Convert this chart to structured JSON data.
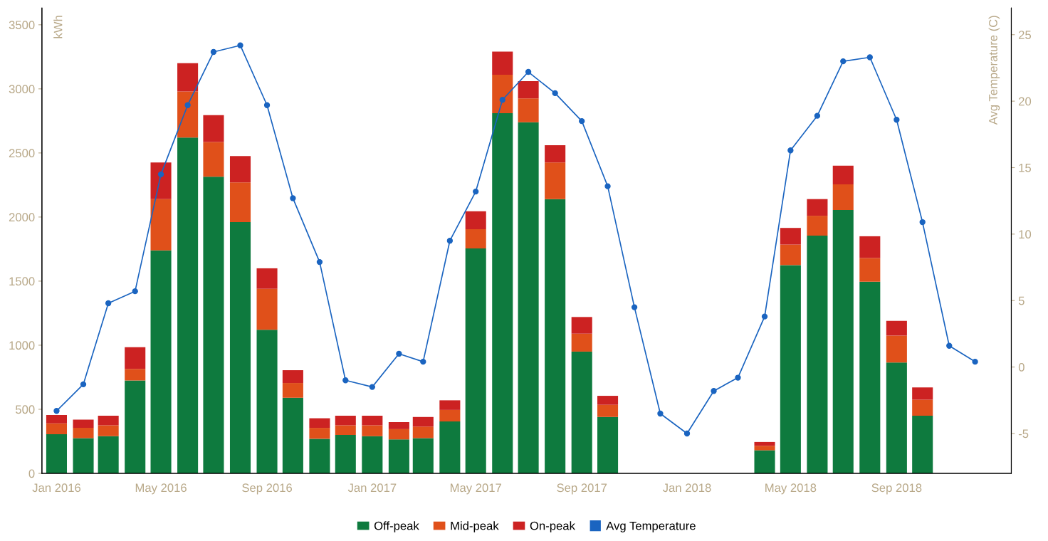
{
  "chart_data": {
    "type": "bar",
    "stacked": true,
    "x": [
      "2016-01",
      "2016-02",
      "2016-03",
      "2016-04",
      "2016-05",
      "2016-06",
      "2016-07",
      "2016-08",
      "2016-09",
      "2016-10",
      "2016-11",
      "2016-12",
      "2017-01",
      "2017-02",
      "2017-03",
      "2017-04",
      "2017-05",
      "2017-06",
      "2017-07",
      "2017-08",
      "2017-09",
      "2017-10",
      "2017-11",
      "2017-12",
      "2018-01",
      "2018-02",
      "2018-03",
      "2018-04",
      "2018-05",
      "2018-06",
      "2018-07",
      "2018-08",
      "2018-09",
      "2018-10",
      "2018-11",
      "2018-12"
    ],
    "series": [
      {
        "name": "Off-peak",
        "color": "#0e7a3e",
        "values": [
          305,
          275,
          290,
          725,
          1740,
          2620,
          2315,
          1960,
          1120,
          590,
          270,
          300,
          290,
          265,
          275,
          405,
          1755,
          2810,
          2740,
          2140,
          950,
          440,
          null,
          null,
          null,
          null,
          null,
          180,
          1625,
          1855,
          2055,
          1495,
          865,
          450,
          null,
          null
        ]
      },
      {
        "name": "Mid-peak",
        "color": "#e0501a",
        "values": [
          85,
          80,
          85,
          90,
          400,
          360,
          270,
          310,
          320,
          115,
          85,
          75,
          85,
          80,
          90,
          90,
          150,
          300,
          185,
          285,
          140,
          95,
          null,
          null,
          null,
          null,
          null,
          35,
          160,
          155,
          200,
          185,
          210,
          125,
          null,
          null
        ]
      },
      {
        "name": "On-peak",
        "color": "#cc2222",
        "values": [
          65,
          65,
          75,
          170,
          285,
          220,
          210,
          205,
          160,
          100,
          75,
          75,
          75,
          55,
          75,
          75,
          140,
          180,
          135,
          135,
          130,
          70,
          null,
          null,
          null,
          null,
          null,
          30,
          130,
          130,
          145,
          170,
          115,
          95,
          null,
          null
        ]
      },
      {
        "name": "Avg Temperature",
        "type": "line",
        "axis": "y2",
        "color": "#1a64c0",
        "marker": "circle",
        "values": [
          -3.3,
          -1.3,
          4.8,
          5.7,
          14.5,
          19.7,
          23.7,
          24.2,
          19.7,
          12.7,
          7.9,
          -1.0,
          -1.5,
          1.0,
          0.4,
          9.5,
          13.2,
          20.1,
          22.2,
          20.6,
          18.5,
          13.6,
          4.5,
          -3.5,
          -5.0,
          -1.8,
          -0.8,
          3.8,
          16.3,
          18.9,
          23.0,
          23.3,
          18.6,
          10.9,
          1.6,
          0.4
        ]
      }
    ],
    "ylabel": "kWh",
    "y2label": "Avg Temperature (C)",
    "xlim": [
      "2015-12-15",
      "2019-01-12"
    ],
    "xticks": [
      {
        "value": "2016-01",
        "label": "Jan 2016"
      },
      {
        "value": "2016-05",
        "label": "May 2016"
      },
      {
        "value": "2016-09",
        "label": "Sep 2016"
      },
      {
        "value": "2017-01",
        "label": "Jan 2017"
      },
      {
        "value": "2017-05",
        "label": "May 2017"
      },
      {
        "value": "2017-09",
        "label": "Sep 2017"
      },
      {
        "value": "2018-01",
        "label": "Jan 2018"
      },
      {
        "value": "2018-05",
        "label": "May 2018"
      },
      {
        "value": "2018-09",
        "label": "Sep 2018"
      }
    ],
    "ylim": [
      0,
      3630
    ],
    "yticks": [
      0,
      500,
      1000,
      1500,
      2000,
      2500,
      3000,
      3500
    ],
    "y2lim": [
      -8,
      27
    ],
    "y2ticks": [
      -5,
      0,
      5,
      10,
      15,
      20,
      25
    ],
    "grid": false,
    "legend": "bottom"
  }
}
